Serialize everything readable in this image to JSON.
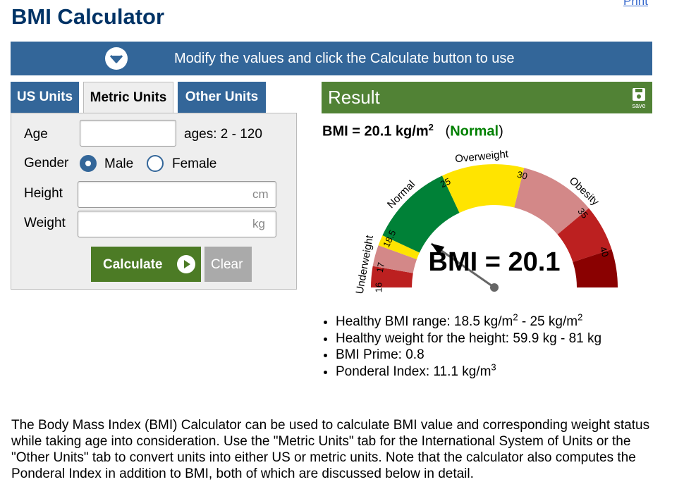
{
  "header": {
    "title": "BMI Calculator",
    "print_label": "Print"
  },
  "banner": {
    "text": "Modify the values and click the Calculate button to use",
    "icon": "chevron-down-circle-icon"
  },
  "tabs": [
    {
      "label": "US Units",
      "active": false
    },
    {
      "label": "Metric Units",
      "active": true
    },
    {
      "label": "Other Units",
      "active": false
    }
  ],
  "form": {
    "age": {
      "label": "Age",
      "value": "",
      "hint": "ages: 2 - 120"
    },
    "gender": {
      "label": "Gender",
      "options": [
        "Male",
        "Female"
      ],
      "selected": "Male"
    },
    "height": {
      "label": "Height",
      "value": "",
      "placeholder": "cm"
    },
    "weight": {
      "label": "Weight",
      "value": "",
      "placeholder": "kg"
    },
    "calculate_label": "Calculate",
    "clear_label": "Clear"
  },
  "result": {
    "title": "Result",
    "save_label": "save",
    "bmi_prefix": "BMI = 20.1 kg/m",
    "bmi_exponent": "2",
    "category_open": "(",
    "category": "Normal",
    "category_close": ")",
    "gauge": {
      "bmi_value": 20.1,
      "value_text": "BMI = 20.1",
      "scale_min": 16,
      "scale_max": 40,
      "segments": [
        {
          "label": "Underweight",
          "from": 16,
          "to": 18.5
        },
        {
          "label": "Normal",
          "from": 18.5,
          "to": 25
        },
        {
          "label": "Overweight",
          "from": 25,
          "to": 30
        },
        {
          "label": "Obesity",
          "from": 30,
          "to": 40
        }
      ],
      "ticks": [
        "16",
        "17",
        "18.5",
        "25",
        "30",
        "35",
        "40"
      ],
      "colors": {
        "severe_thin": "#bc2020",
        "mild_thin": "#d38888",
        "underweight": "#ffe400",
        "normal": "#008137",
        "overweight": "#ffe400",
        "obese_1": "#d38888",
        "obese_2": "#bc2020",
        "obese_3": "#8a0101",
        "needle": "#666666"
      }
    },
    "bullets": [
      {
        "text": "Healthy BMI range: 18.5 kg/m",
        "sup": "2",
        "text2": " - 25 kg/m",
        "sup2": "2"
      },
      {
        "text": "Healthy weight for the height: 59.9 kg - 81 kg"
      },
      {
        "text": "BMI Prime: 0.8"
      },
      {
        "text": "Ponderal Index: 11.1 kg/m",
        "sup": "3"
      }
    ]
  },
  "description": "The Body Mass Index (BMI) Calculator can be used to calculate BMI value and corresponding weight status while taking age into consideration. Use the \"Metric Units\" tab for the International System of Units or the \"Other Units\" tab to convert units into either US or metric units. Note that the calculator also computes the Ponderal Index in addition to BMI, both of which are discussed below in detail."
}
